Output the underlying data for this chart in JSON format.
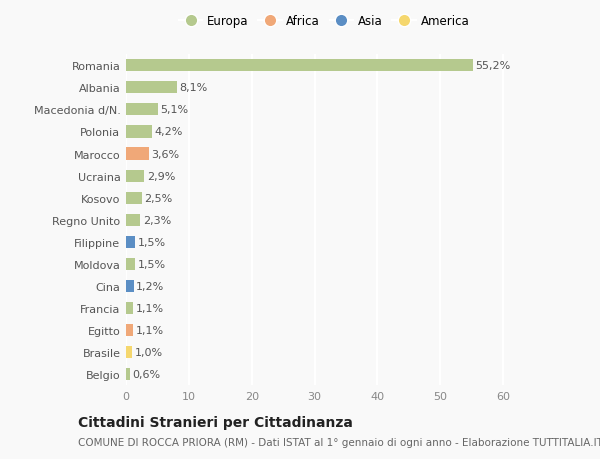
{
  "countries": [
    "Belgio",
    "Brasile",
    "Egitto",
    "Francia",
    "Cina",
    "Moldova",
    "Filippine",
    "Regno Unito",
    "Kosovo",
    "Ucraina",
    "Marocco",
    "Polonia",
    "Macedonia d/N.",
    "Albania",
    "Romania"
  ],
  "values": [
    0.6,
    1.0,
    1.1,
    1.1,
    1.2,
    1.5,
    1.5,
    2.3,
    2.5,
    2.9,
    3.6,
    4.2,
    5.1,
    8.1,
    55.2
  ],
  "labels": [
    "0,6%",
    "1,0%",
    "1,1%",
    "1,1%",
    "1,2%",
    "1,5%",
    "1,5%",
    "2,3%",
    "2,5%",
    "2,9%",
    "3,6%",
    "4,2%",
    "5,1%",
    "8,1%",
    "55,2%"
  ],
  "continents": [
    "Europa",
    "America",
    "Africa",
    "Europa",
    "Asia",
    "Europa",
    "Asia",
    "Europa",
    "Europa",
    "Europa",
    "Africa",
    "Europa",
    "Europa",
    "Europa",
    "Europa"
  ],
  "continent_colors": {
    "Europa": "#b5c98e",
    "Africa": "#f0a878",
    "Asia": "#5b8ec4",
    "America": "#f5d76e"
  },
  "legend_order": [
    "Europa",
    "Africa",
    "Asia",
    "America"
  ],
  "title": "Cittadini Stranieri per Cittadinanza",
  "subtitle": "COMUNE DI ROCCA PRIORA (RM) - Dati ISTAT al 1° gennaio di ogni anno - Elaborazione TUTTITALIA.IT",
  "xlabel_ticks": [
    0,
    10,
    20,
    30,
    40,
    50,
    60
  ],
  "bg_color": "#f9f9f9",
  "grid_color": "#ffffff",
  "bar_height": 0.55,
  "title_fontsize": 10,
  "subtitle_fontsize": 7.5,
  "label_fontsize": 8,
  "tick_fontsize": 8,
  "legend_fontsize": 8.5
}
